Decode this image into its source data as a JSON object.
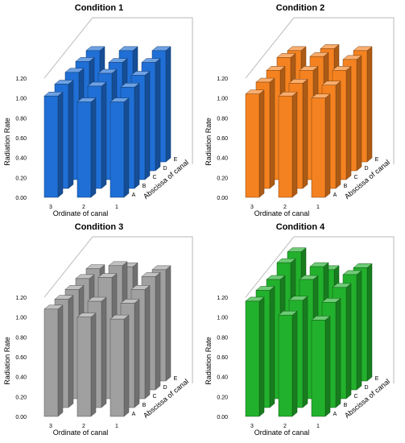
{
  "chart_data": [
    {
      "type": "bar",
      "title": "Condition  1",
      "ylabel": "Radiation Rate",
      "xlabel": "Ordinate of canal",
      "zlabel": "Abscissa of canal",
      "rows": [
        "3",
        "2",
        "1"
      ],
      "columns": [
        "A",
        "B",
        "C",
        "D",
        "E"
      ],
      "yticks": [
        "0.00",
        "0.20",
        "0.40",
        "0.60",
        "0.80",
        "1.00",
        "1.20"
      ],
      "ylim": [
        0,
        1.2
      ],
      "grid": false,
      "color": "#1f6fd6",
      "values": [
        [
          1.02,
          1.05,
          1.08,
          1.1,
          1.12
        ],
        [
          0.96,
          1.03,
          1.07,
          1.09,
          1.12
        ],
        [
          0.96,
          1.02,
          1.05,
          1.09,
          1.12
        ]
      ]
    },
    {
      "type": "bar",
      "title": "Condition  2",
      "ylabel": "Radiation Rate",
      "xlabel": "Ordinate of canal",
      "zlabel": "Abscissa of canal",
      "rows": [
        "3",
        "2",
        "1"
      ],
      "columns": [
        "A",
        "B",
        "C",
        "D",
        "E"
      ],
      "yticks": [
        "0.00",
        "0.20",
        "0.40",
        "0.60",
        "0.80",
        "1.00",
        "1.20"
      ],
      "ylim": [
        0,
        1.2
      ],
      "grid": false,
      "color": "#f58220",
      "values": [
        [
          1.04,
          1.07,
          1.1,
          1.14,
          1.12
        ],
        [
          1.02,
          1.06,
          1.1,
          1.15,
          1.14
        ],
        [
          1.0,
          1.04,
          1.1,
          1.12,
          1.12
        ]
      ]
    },
    {
      "type": "bar",
      "title": "Condition 3",
      "ylabel": "Radiation Rate",
      "xlabel": "Ordinate of canal",
      "zlabel": "Abscissa of canal",
      "rows": [
        "3",
        "2",
        "1"
      ],
      "columns": [
        "A",
        "B",
        "C",
        "D",
        "E"
      ],
      "yticks": [
        "0.00",
        "0.20",
        "0.40",
        "0.60",
        "0.80",
        "1.00",
        "1.20"
      ],
      "ylim": [
        0,
        1.2
      ],
      "grid": false,
      "color": "#a0a0a0",
      "values": [
        [
          1.08,
          1.09,
          1.1,
          1.12,
          1.13
        ],
        [
          1.0,
          1.07,
          1.22,
          1.25,
          1.15
        ],
        [
          0.98,
          1.05,
          1.1,
          1.14,
          1.12
        ]
      ]
    },
    {
      "type": "bar",
      "title": "Condition 4",
      "ylabel": "Radiation Rate",
      "xlabel": "Ordinate of canal",
      "zlabel": "Abscissa of canal",
      "rows": [
        "3",
        "2",
        "1"
      ],
      "columns": [
        "A",
        "B",
        "C",
        "D",
        "E"
      ],
      "yticks": [
        "0.00",
        "0.20",
        "0.40",
        "0.60",
        "0.80",
        "1.00",
        "1.20"
      ],
      "ylim": [
        0,
        1.2
      ],
      "grid": false,
      "color": "#22b12c",
      "values": [
        [
          1.16,
          1.18,
          1.2,
          1.28,
          1.3
        ],
        [
          1.02,
          1.08,
          1.2,
          1.24,
          1.12
        ],
        [
          0.97,
          1.06,
          1.12,
          1.16,
          1.14
        ]
      ]
    }
  ]
}
